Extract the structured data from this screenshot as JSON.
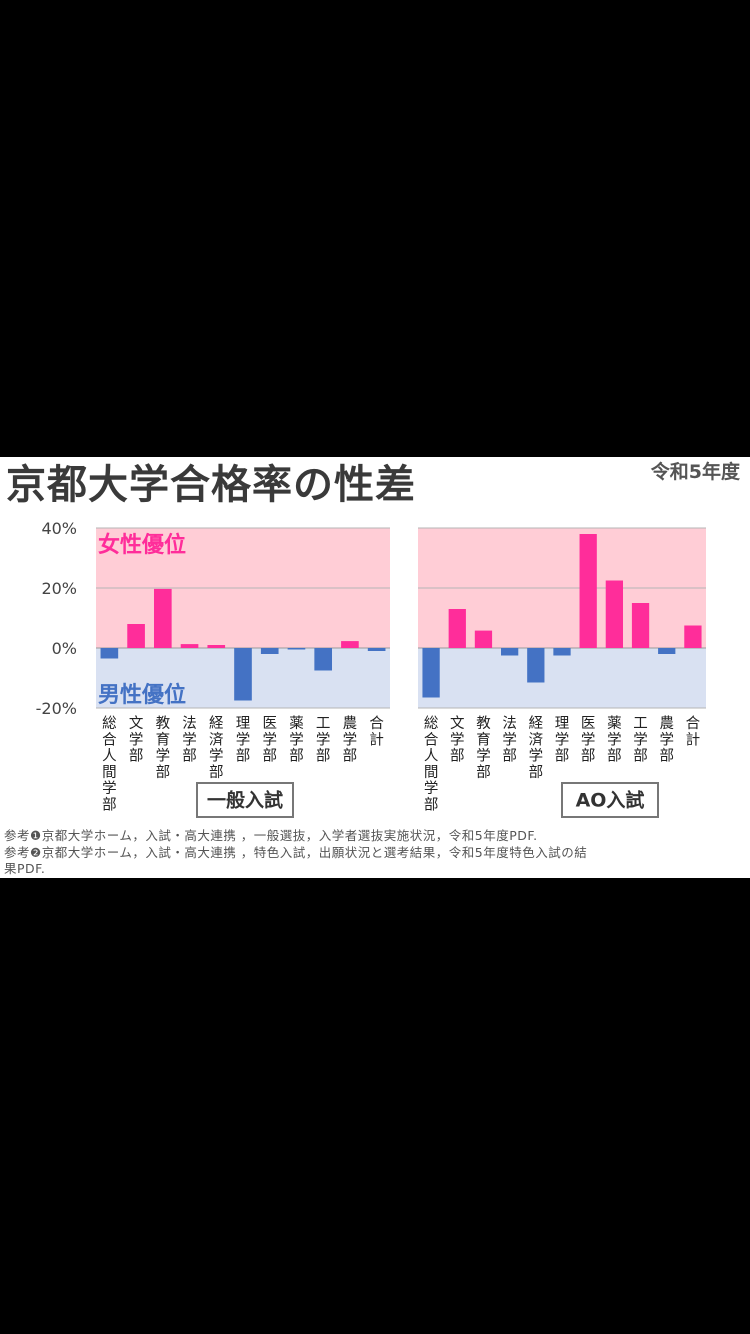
{
  "header": {
    "title": "京都大学合格率の性差",
    "year": "令和5年度"
  },
  "colors": {
    "female": "#ff2d9a",
    "male": "#4472c4",
    "female_bg": "#ffcdd6",
    "male_bg": "#d9e1f2",
    "female_text": "#ff2d9a",
    "male_text": "#4472c4"
  },
  "chart_data": [
    {
      "type": "bar",
      "panel_label": "一般入試",
      "female_label": "女性優位",
      "male_label": "男性優位",
      "categories": [
        "総合人間学部",
        "文学部",
        "教育学部",
        "法学部",
        "経済学部",
        "理学部",
        "医学部",
        "薬学部",
        "工学部",
        "農学部",
        "合計"
      ],
      "values": [
        -3.5,
        8,
        19.7,
        1.3,
        1,
        -17.5,
        -2,
        -0.5,
        -7.5,
        2.3,
        -1
      ],
      "ylim": [
        -20,
        40
      ],
      "yticks": [
        "40%",
        "20%",
        "0%",
        "-20%"
      ],
      "grid": true
    },
    {
      "type": "bar",
      "panel_label": "AO入試",
      "categories": [
        "総合人間学部",
        "文学部",
        "教育学部",
        "法学部",
        "経済学部",
        "理学部",
        "医学部",
        "薬学部",
        "工学部",
        "農学部",
        "合計"
      ],
      "values": [
        -16.5,
        13,
        5.8,
        -2.5,
        -11.5,
        -2.5,
        38,
        22.5,
        15,
        -2,
        7.5
      ],
      "ylim": [
        -20,
        40
      ],
      "grid": true
    }
  ],
  "references": {
    "line1": "参考❶京都大学ホーム，入試・高大連携 ，一般選抜，入学者選抜実施状況，令和5年度PDF.",
    "line2": "参考❷京都大学ホーム，入試・高大連携 ，特色入試，出願状況と選考結果，令和5年度特色入試の結",
    "line3": "果PDF."
  }
}
